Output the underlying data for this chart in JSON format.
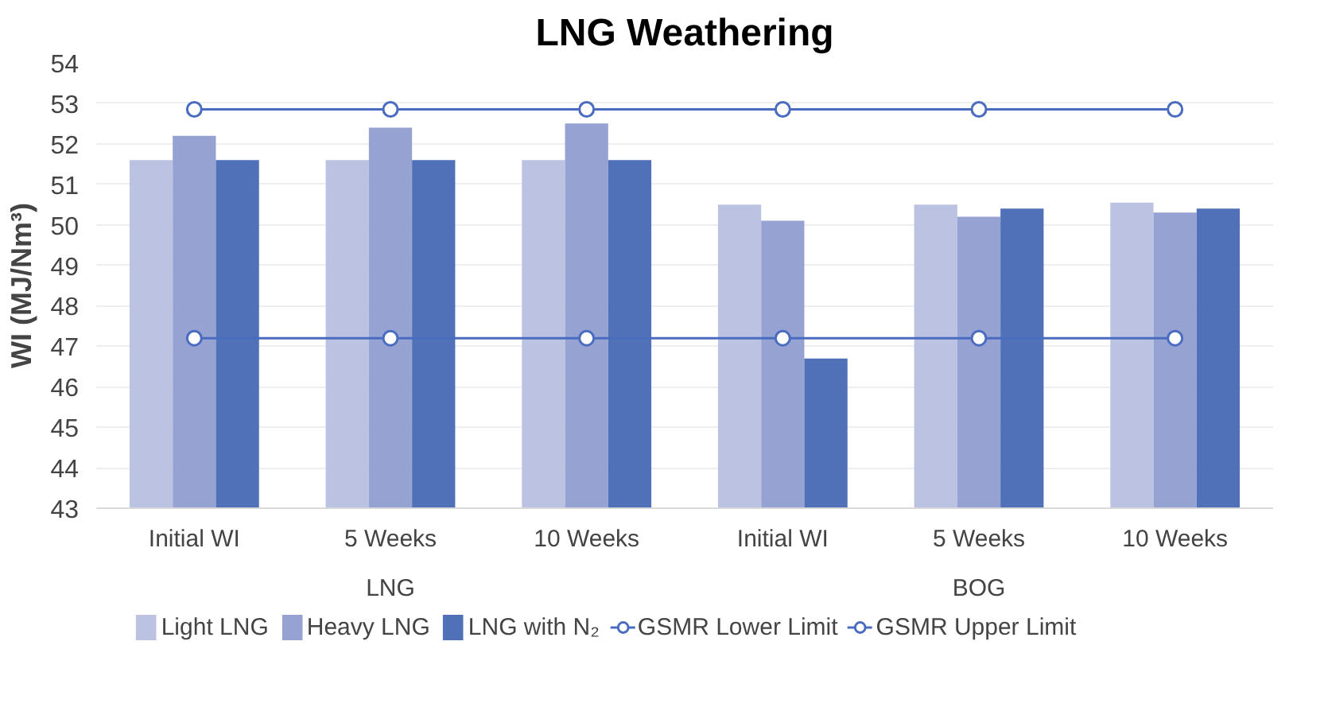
{
  "chart_data": {
    "type": "bar",
    "title": "LNG Weathering",
    "ylabel": "WI (MJ/Nm³)",
    "categories": [
      "Initial WI",
      "5 Weeks",
      "10 Weeks",
      "Initial WI",
      "5 Weeks",
      "10 Weeks"
    ],
    "annotations": [
      "LNG",
      "BOG"
    ],
    "series": [
      {
        "name": "Light LNG",
        "color": "#bcc3e2",
        "values": [
          51.6,
          51.6,
          51.6,
          50.5,
          50.5,
          50.55
        ]
      },
      {
        "name": "Heavy LNG",
        "color": "#95a2d2",
        "values": [
          52.2,
          52.4,
          52.5,
          50.1,
          50.2,
          50.3
        ]
      },
      {
        "name": "LNG with N₂",
        "color": "#5070b8",
        "values": [
          51.6,
          51.6,
          51.6,
          46.7,
          50.4,
          50.4
        ]
      },
      {
        "name": "GSMR Lower Limit",
        "type": "line",
        "color": "#4a6cc0",
        "values": [
          47.2,
          47.2,
          47.2,
          47.2,
          47.2,
          47.2
        ]
      },
      {
        "name": "GSMR Upper Limit",
        "type": "line",
        "color": "#4a6cc0",
        "values": [
          52.85,
          52.85,
          52.85,
          52.85,
          52.85,
          52.85
        ]
      }
    ],
    "ylim": [
      43,
      54
    ],
    "yticks": [
      43,
      44,
      45,
      46,
      47,
      48,
      49,
      50,
      51,
      52,
      53,
      54
    ],
    "grid": "y",
    "legend": "bottom",
    "marker": "circle"
  }
}
